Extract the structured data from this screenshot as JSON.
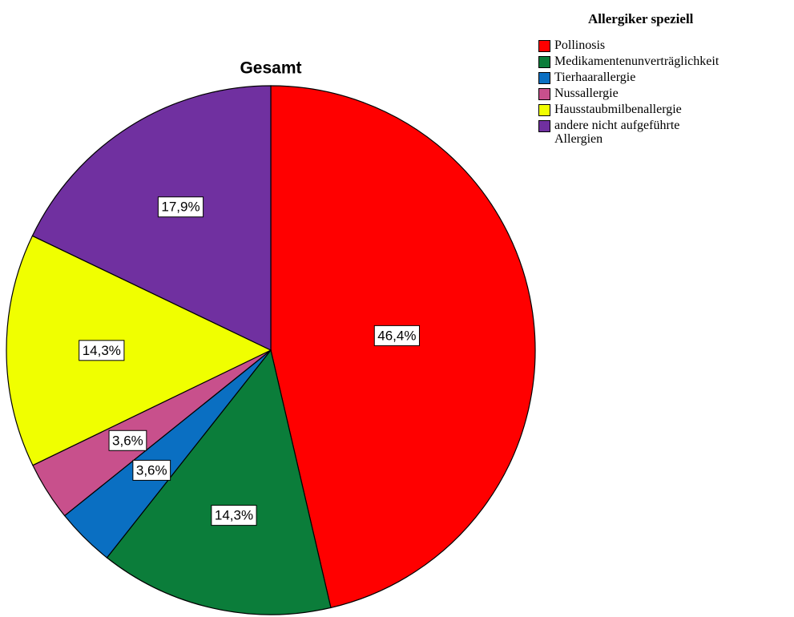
{
  "chart_data": {
    "type": "pie",
    "title": "Gesamt",
    "legend_title": "Allergiker speziell",
    "categories": [
      "Pollinosis",
      "Medikamentenunverträglichkeit",
      "Tierhaarallergie",
      "Nussallergie",
      "Hausstaubmilbenallergie",
      "andere nicht aufgeführte Allergien"
    ],
    "values": [
      46.4,
      14.3,
      3.6,
      3.6,
      14.3,
      17.9
    ],
    "value_labels": [
      "46,4%",
      "14,3%",
      "3,6%",
      "3,6%",
      "14,3%",
      "17,9%"
    ],
    "colors": [
      "#ff0000",
      "#0b7d3a",
      "#0a6fc2",
      "#c8508c",
      "#f0ff00",
      "#7030a0"
    ],
    "legend": "top-right"
  }
}
